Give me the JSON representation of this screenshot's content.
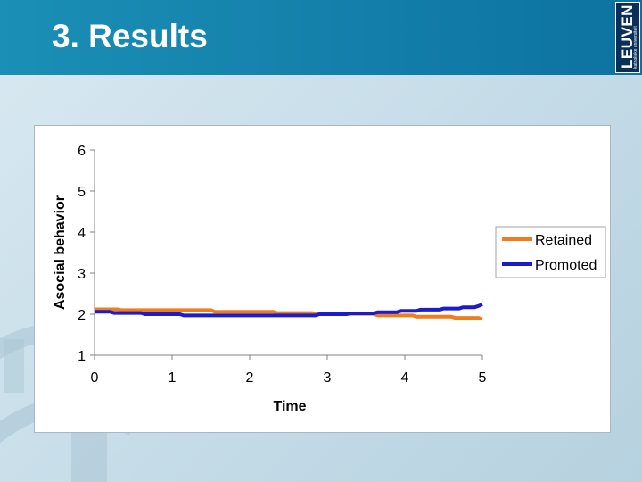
{
  "slide": {
    "title": "3. Results"
  },
  "logo": {
    "name": "LEUVEN",
    "tagline": "katholieke universiteit"
  },
  "colors": {
    "header": "#0d72a0",
    "retained": "#f07d1c",
    "promoted": "#1c1ccc"
  },
  "chart_data": {
    "type": "line",
    "title": "",
    "xlabel": "Time",
    "ylabel": "Asocial behavior",
    "xlim": [
      0,
      5
    ],
    "ylim": [
      1,
      6
    ],
    "xticks": [
      0,
      1,
      2,
      3,
      4,
      5
    ],
    "yticks": [
      1,
      2,
      3,
      4,
      5,
      6
    ],
    "grid": false,
    "legend": "right",
    "series": [
      {
        "name": "Retained",
        "color": "#f07d1c",
        "x": [
          0,
          0.3,
          0.35,
          1.5,
          1.55,
          2.3,
          2.35,
          2.8,
          2.85,
          3.6,
          3.65,
          4.1,
          4.15,
          4.6,
          4.65,
          4.95,
          5.0
        ],
        "y": [
          2.12,
          2.12,
          2.1,
          2.1,
          2.06,
          2.06,
          2.03,
          2.03,
          2.01,
          2.01,
          1.97,
          1.97,
          1.94,
          1.94,
          1.91,
          1.91,
          1.88
        ]
      },
      {
        "name": "Promoted",
        "color": "#1c1ccc",
        "x": [
          0,
          0.2,
          0.25,
          0.6,
          0.65,
          1.1,
          1.15,
          2.85,
          2.9,
          3.25,
          3.3,
          3.6,
          3.65,
          3.9,
          3.95,
          4.15,
          4.2,
          4.45,
          4.5,
          4.7,
          4.75,
          4.9,
          4.95,
          5.0
        ],
        "y": [
          2.06,
          2.06,
          2.03,
          2.03,
          2.0,
          2.0,
          1.97,
          1.97,
          2.0,
          2.0,
          2.02,
          2.02,
          2.05,
          2.05,
          2.08,
          2.08,
          2.11,
          2.11,
          2.14,
          2.14,
          2.17,
          2.17,
          2.2,
          2.24
        ]
      }
    ]
  }
}
